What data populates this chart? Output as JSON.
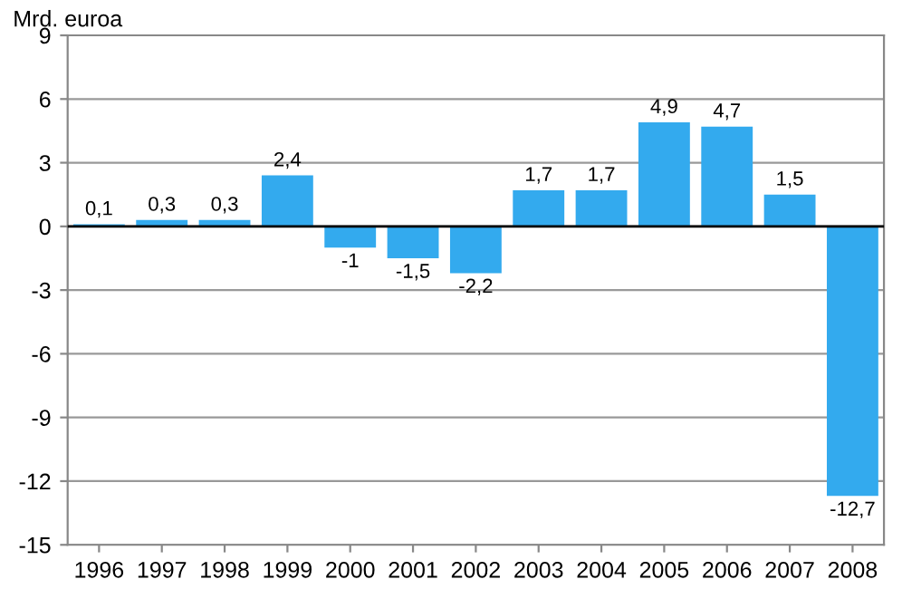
{
  "chart_data": {
    "type": "bar",
    "ylabel": "Mrd. euroa",
    "categories": [
      "1996",
      "1997",
      "1998",
      "1999",
      "2000",
      "2001",
      "2002",
      "2003",
      "2004",
      "2005",
      "2006",
      "2007",
      "2008"
    ],
    "values": [
      0.1,
      0.3,
      0.3,
      2.4,
      -1,
      -1.5,
      -2.2,
      1.7,
      1.7,
      4.9,
      4.7,
      1.5,
      -12.7
    ],
    "value_labels": [
      "0,1",
      "0,3",
      "0,3",
      "2,4",
      "-1",
      "-1,5",
      "-2,2",
      "1,7",
      "1,7",
      "4,9",
      "4,7",
      "1,5",
      "-12,7"
    ],
    "color": "#33aaee",
    "ylim": [
      -15,
      9
    ],
    "yticks": [
      -15,
      -12,
      -9,
      -6,
      -3,
      0,
      3,
      6,
      9
    ],
    "grid": "y",
    "ref_lines": [
      {
        "axis": "y",
        "value": 0,
        "color": "#000000"
      }
    ]
  }
}
